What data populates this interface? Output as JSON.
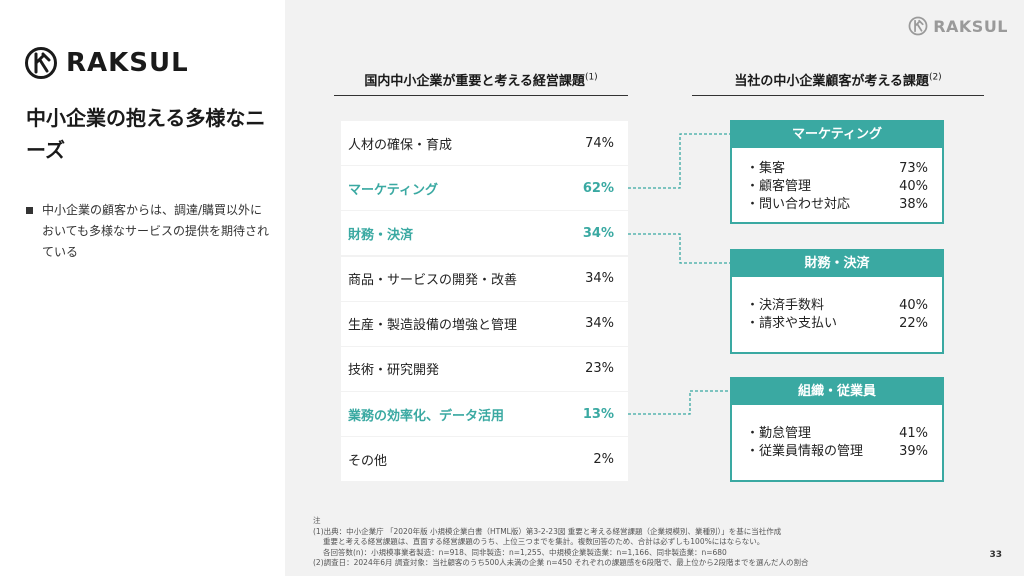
{
  "brand": {
    "logo_text": "RAKSUL",
    "accent": "#3aa9a2"
  },
  "title": "中小企業の抱える多様なニーズ",
  "bullet": "中小企業の顧客からは、調達/購買以外においても多様なサービスの提供を期待されている",
  "table_heading": {
    "text": "国内中小企業が重要と考える経営課題",
    "note": "(1)"
  },
  "boxes_heading": {
    "text": "当社の中小企業顧客が考える課題",
    "note": "(2)"
  },
  "table": [
    {
      "label": "人材の確保・育成",
      "value": "74%"
    },
    {
      "label": "マーケティング",
      "value": "62%"
    },
    {
      "label": "財務・決済",
      "value": "34%"
    },
    {
      "label": "商品・サービスの開発・改善",
      "value": "34%"
    },
    {
      "label": "生産・製造設備の増強と管理",
      "value": "34%"
    },
    {
      "label": "技術・研究開発",
      "value": "23%"
    },
    {
      "label": "業務の効率化、データ活用",
      "value": "13%"
    },
    {
      "label": "その他",
      "value": "2%"
    }
  ],
  "boxes": [
    {
      "title": "マーケティング",
      "items": [
        {
          "label": "・集客",
          "value": "73%"
        },
        {
          "label": "・顧客管理",
          "value": "40%"
        },
        {
          "label": "・問い合わせ対応",
          "value": "38%"
        }
      ]
    },
    {
      "title": "財務・決済",
      "items": [
        {
          "label": "・決済手数料",
          "value": "40%"
        },
        {
          "label": "・請求や支払い",
          "value": "22%"
        }
      ]
    },
    {
      "title": "組織・従業員",
      "items": [
        {
          "label": "・勤怠管理",
          "value": "41%"
        },
        {
          "label": "・従業員情報の管理",
          "value": "39%"
        }
      ]
    }
  ],
  "notes": {
    "label": "注",
    "line1": "(1)出典：中小企業庁 「2020年版 小規模企業白書（HTML版）第3-2-23図 重要と考える経営課題（企業規模別、業種別）」を基に当社作成",
    "line2": "重要と考える経営課題は、直面する経営課題のうち、上位三つまでを集計。複数回答のため、合計は必ずしも100%にはならない。",
    "line3": "各回答数(n)：小規模事業者製造：n=918、同非製造：n=1,255、中規模企業製造業：n=1,166、同非製造業：n=680",
    "line4": "(2)調査日：2024年6月 調査対象：当社顧客のうち500人未満の企業 n=450 それぞれの課題感を6段階で、最上位から2段階までを選んだ人の割合"
  },
  "page_number": "33"
}
